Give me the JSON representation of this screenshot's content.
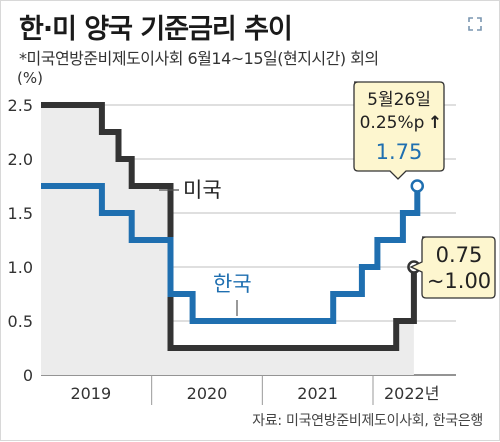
{
  "title": "한·미 양국 기준금리 추이",
  "subtitle": "*미국연방준비제도이사회 6월14~15일(현지시간) 회의",
  "source": "자료: 미국연방준비제도이사회, 한국은행",
  "icons": {
    "zoom": "zoom-expand-icon"
  },
  "colors": {
    "us": "#333333",
    "korea": "#1f6fb0",
    "callout_bg": "#fdf6cf",
    "shade": "#ececec"
  },
  "chart_data": {
    "type": "line",
    "step": true,
    "yunit": "(%)",
    "ylim": [
      0,
      2.5
    ],
    "yticks": [
      "0",
      "0.5",
      "1.0",
      "1.5",
      "2.0",
      "2.5"
    ],
    "ytick_values": [
      0,
      0.5,
      1.0,
      1.5,
      2.0,
      2.5
    ],
    "xlim": [
      2019.0,
      2022.75
    ],
    "xticks": [
      "2019",
      "2020",
      "2021",
      "2022년"
    ],
    "xtick_positions": [
      2019.45,
      2020.5,
      2021.5,
      2022.35
    ],
    "year_boundaries": [
      2020.0,
      2021.0,
      2022.0
    ],
    "grid": "horizontal",
    "series": [
      {
        "name": "미국",
        "color": "#333333",
        "shaded": true,
        "points": [
          [
            2019.0,
            2.5
          ],
          [
            2019.55,
            2.25
          ],
          [
            2019.7,
            2.0
          ],
          [
            2019.82,
            1.75
          ],
          [
            2020.17,
            0.25
          ],
          [
            2022.21,
            0.5
          ],
          [
            2022.37,
            1.0
          ]
        ]
      },
      {
        "name": "한국",
        "color": "#1f6fb0",
        "shaded": false,
        "points": [
          [
            2019.0,
            1.75
          ],
          [
            2019.55,
            1.5
          ],
          [
            2019.82,
            1.25
          ],
          [
            2020.17,
            0.75
          ],
          [
            2020.37,
            0.5
          ],
          [
            2021.64,
            0.75
          ],
          [
            2021.9,
            1.0
          ],
          [
            2022.04,
            1.25
          ],
          [
            2022.27,
            1.5
          ],
          [
            2022.4,
            1.75
          ]
        ]
      }
    ],
    "annotations": {
      "korea_callout": {
        "line1": "5월26일",
        "line2": "0.25%p",
        "arrow": "↑",
        "value": "1.75"
      },
      "us_callout": {
        "line1": "0.75",
        "line2": "~1.00"
      }
    }
  }
}
